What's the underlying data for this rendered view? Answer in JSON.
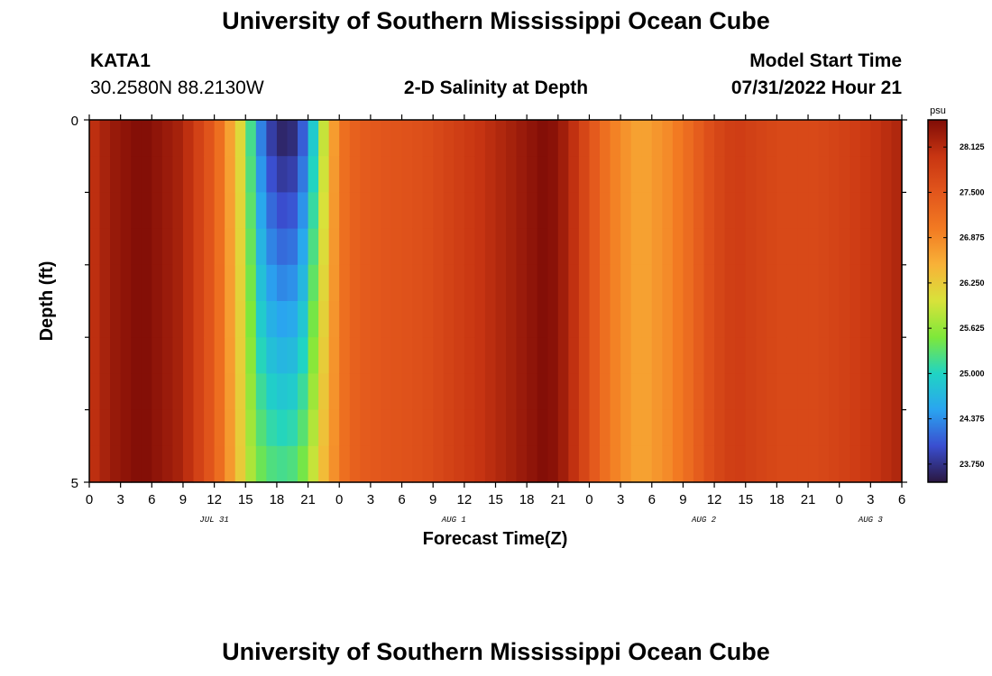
{
  "header": {
    "title": "University of Southern Mississippi Ocean Cube",
    "station": "KATA1",
    "coordinates": "30.2580N  88.2130W",
    "plot_title": "2-D Salinity at Depth",
    "model_start_label": "Model Start Time",
    "model_start_value": "07/31/2022 Hour 21"
  },
  "footer": {
    "title": "University of Southern Mississippi Ocean Cube"
  },
  "chart_data": {
    "type": "heatmap",
    "title": "2-D Salinity at Depth",
    "xlabel": "Forecast Time(Z)",
    "ylabel": "Depth (ft)",
    "x_unit": "hour",
    "x_range": [
      0,
      78
    ],
    "y_range": [
      0,
      5
    ],
    "y_tick_labels": [
      "0",
      "5"
    ],
    "x_tick_labels": [
      "0",
      "3",
      "6",
      "9",
      "12",
      "15",
      "18",
      "21",
      "0",
      "3",
      "6",
      "9",
      "12",
      "15",
      "18",
      "21",
      "0",
      "3",
      "6",
      "9",
      "12",
      "15",
      "18",
      "21",
      "0",
      "3",
      "6"
    ],
    "x_day_labels": [
      {
        "label": "JUL 31",
        "hour": 12
      },
      {
        "label": "AUG 1",
        "hour": 35
      },
      {
        "label": "AUG 2",
        "hour": 59
      },
      {
        "label": "AUG 3",
        "hour": 75
      }
    ],
    "depth_layers_ft": [
      0.25,
      0.75,
      1.25,
      1.75,
      2.25,
      2.75,
      3.25,
      3.75,
      4.25,
      4.75
    ],
    "profile_hours": [
      0,
      2,
      5,
      9,
      12,
      14,
      15,
      16,
      17,
      18,
      19,
      20,
      21,
      22,
      23,
      24,
      25,
      26,
      28,
      32,
      36,
      40,
      44,
      46,
      48,
      50,
      52,
      53,
      54,
      56,
      58,
      60,
      62,
      64,
      66,
      70,
      74,
      78
    ],
    "surface_salinity": [
      28.0,
      28.3,
      28.5,
      28.2,
      27.4,
      26.4,
      25.8,
      24.6,
      24.0,
      23.7,
      23.6,
      23.8,
      24.4,
      25.4,
      26.4,
      27.0,
      27.3,
      27.4,
      27.5,
      27.6,
      27.9,
      28.2,
      28.5,
      28.2,
      27.6,
      27.0,
      26.7,
      26.6,
      26.7,
      26.9,
      27.3,
      27.7,
      27.9,
      27.8,
      27.7,
      27.7,
      27.9,
      28.2
    ],
    "bottom_salinity": [
      28.0,
      28.3,
      28.5,
      28.2,
      27.4,
      26.5,
      26.0,
      25.5,
      25.3,
      25.2,
      25.2,
      25.3,
      25.6,
      26.2,
      26.6,
      27.0,
      27.3,
      27.4,
      27.5,
      27.6,
      27.9,
      28.2,
      28.5,
      28.2,
      27.6,
      27.0,
      26.7,
      26.6,
      26.7,
      26.9,
      27.3,
      27.7,
      27.9,
      27.8,
      27.7,
      27.7,
      27.9,
      28.2
    ],
    "colorbar": {
      "unit": "psu",
      "min": 23.5,
      "max": 28.5,
      "tick_labels": [
        "28.125",
        "27.500",
        "26.875",
        "26.250",
        "25.625",
        "25.000",
        "24.375",
        "23.750"
      ],
      "tick_values": [
        28.125,
        27.5,
        26.875,
        26.25,
        25.625,
        25.0,
        24.375,
        23.75
      ],
      "colors": [
        "#2a1740",
        "#3a4ed0",
        "#2aa4f0",
        "#20d4c4",
        "#7ee83a",
        "#d8e23a",
        "#f8b238",
        "#f27a22",
        "#e2561c",
        "#c83512",
        "#7f0c06"
      ]
    }
  }
}
